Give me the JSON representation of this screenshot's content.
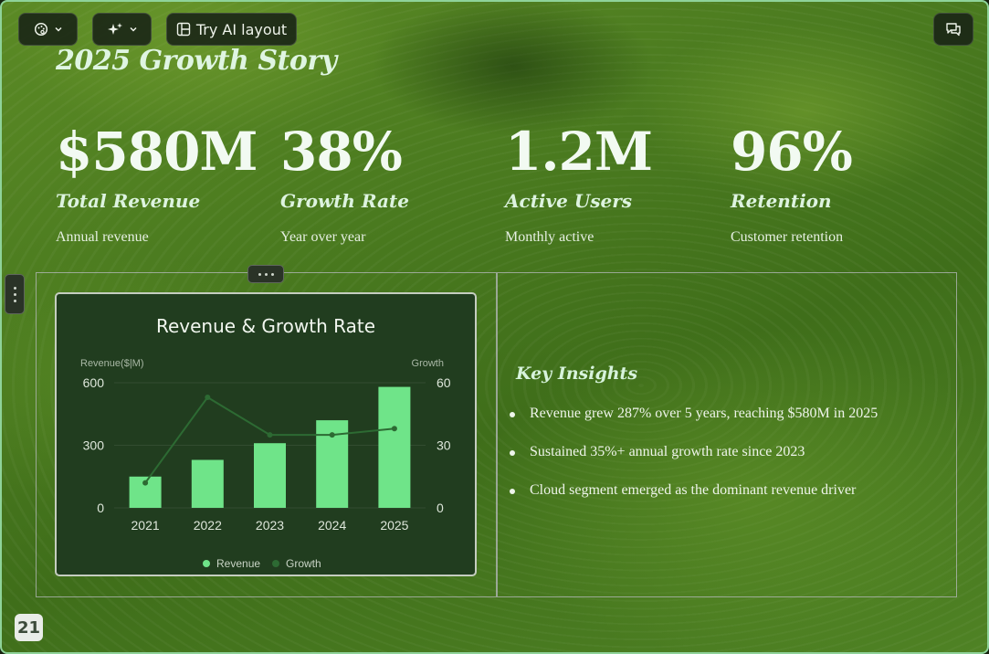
{
  "toolbar": {
    "theme_icon": "palette-icon",
    "ai_icon": "sparkles-icon",
    "layout_label": "Try AI layout",
    "layout_icon": "layout-icon",
    "comments_icon": "chat-icon"
  },
  "slide": {
    "title": "2025 Growth Story",
    "page_number": "21"
  },
  "stats": [
    {
      "value": "$580M",
      "label": "Total Revenue",
      "sub": "Annual revenue"
    },
    {
      "value": "38%",
      "label": "Growth Rate",
      "sub": "Year over year"
    },
    {
      "value": "1.2M",
      "label": "Active Users",
      "sub": "Monthly active"
    },
    {
      "value": "96%",
      "label": "Retention",
      "sub": "Customer retention"
    }
  ],
  "insights": {
    "title": "Key Insights",
    "items": [
      "Revenue grew 287% over 5 years, reaching $580M in 2025",
      "Sustained 35%+ annual growth rate since 2023",
      "Cloud segment emerged as the dominant revenue driver"
    ]
  },
  "colors": {
    "bar": "#6fe489",
    "line": "#2d6a33",
    "card_bg": "#213d1f"
  },
  "chart_data": {
    "type": "bar",
    "title": "Revenue & Growth Rate",
    "categories": [
      "2021",
      "2022",
      "2023",
      "2024",
      "2025"
    ],
    "series": [
      {
        "name": "Revenue",
        "type": "bar",
        "axis": "left",
        "values": [
          150,
          230,
          310,
          420,
          580
        ]
      },
      {
        "name": "Growth",
        "type": "line",
        "axis": "right",
        "values": [
          12,
          53,
          35,
          35,
          38
        ]
      }
    ],
    "ylabel": "Revenue($|M)",
    "ylabel_right": "Growth",
    "ylim": [
      0,
      600
    ],
    "ylim_right": [
      0,
      60
    ],
    "yticks": [
      0,
      300,
      600
    ],
    "yticks_right": [
      0,
      30,
      60
    ],
    "grid": true,
    "legend": "bottom"
  }
}
